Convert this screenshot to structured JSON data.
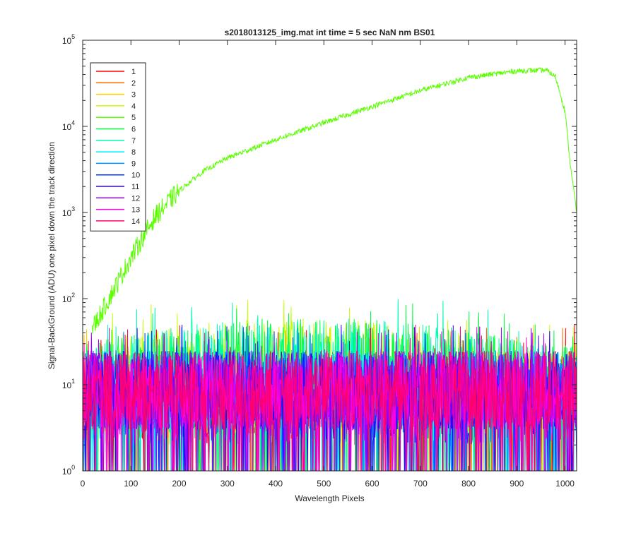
{
  "chart_data": {
    "type": "line",
    "title": "s2018013125_img.mat int time = 5 sec  NaN nm BS01",
    "xlabel": "Wavelength Pixels",
    "ylabel": "Signal-BackGround (ADU) one pixel down the track direction",
    "xlim": [
      0,
      1024
    ],
    "ylim": [
      1,
      100000
    ],
    "yscale": "log",
    "grid": false,
    "legend_position": "top-left",
    "x_ticks": [
      "0",
      "100",
      "200",
      "300",
      "400",
      "500",
      "600",
      "700",
      "800",
      "900",
      "1000"
    ],
    "y_tick_exponents": [
      "0",
      "1",
      "2",
      "3",
      "4",
      "5"
    ],
    "series": [
      {
        "name": "1",
        "color": "#ff0000"
      },
      {
        "name": "2",
        "color": "#ff6a00"
      },
      {
        "name": "3",
        "color": "#ffd000"
      },
      {
        "name": "4",
        "color": "#c8ff00"
      },
      {
        "name": "5",
        "color": "#5cff00",
        "peak_profile": {
          "x": [
            20,
            50,
            100,
            150,
            200,
            250,
            300,
            400,
            500,
            600,
            700,
            800,
            900,
            960,
            980,
            1000,
            1010,
            1024
          ],
          "y": [
            45,
            90,
            300,
            900,
            1800,
            3000,
            4300,
            7000,
            11000,
            17000,
            26000,
            37000,
            44000,
            45000,
            38000,
            15000,
            4000,
            1000
          ]
        }
      },
      {
        "name": "6",
        "color": "#00ff40"
      },
      {
        "name": "7",
        "color": "#00ffb0"
      },
      {
        "name": "8",
        "color": "#00f0ff"
      },
      {
        "name": "9",
        "color": "#0090ff"
      },
      {
        "name": "10",
        "color": "#0030ff"
      },
      {
        "name": "11",
        "color": "#3000ff"
      },
      {
        "name": "12",
        "color": "#a000ff"
      },
      {
        "name": "13",
        "color": "#ff00e0"
      },
      {
        "name": "14",
        "color": "#ff0070"
      }
    ],
    "noise_floor": {
      "typical_max": 40,
      "typical_min": 1,
      "bright_tracks": [
        "4",
        "5",
        "6",
        "7"
      ],
      "bright_tracks_max": 100
    }
  }
}
